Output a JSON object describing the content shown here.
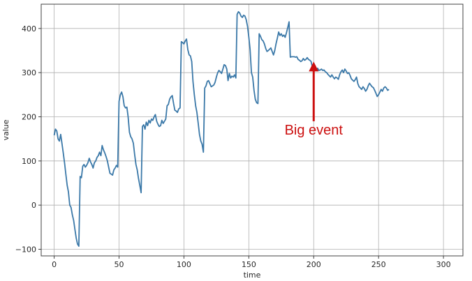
{
  "chart_data": {
    "type": "line",
    "title": "",
    "xlabel": "time",
    "ylabel": "value",
    "xlim": [
      -10,
      315
    ],
    "ylim": [
      -115,
      455
    ],
    "grid": true,
    "x_ticks": [
      0,
      50,
      100,
      150,
      200,
      250,
      300
    ],
    "y_ticks": [
      -100,
      0,
      100,
      200,
      300,
      400
    ],
    "x_tick_labels": [
      "0",
      "50",
      "100",
      "150",
      "200",
      "250",
      "300"
    ],
    "y_tick_labels": [
      "−100",
      "0",
      "100",
      "200",
      "300",
      "400"
    ],
    "series": [
      {
        "color": "#3a78a8",
        "points": [
          [
            0,
            158
          ],
          [
            1,
            172
          ],
          [
            2,
            168
          ],
          [
            3,
            150
          ],
          [
            4,
            145
          ],
          [
            5,
            160
          ],
          [
            6,
            140
          ],
          [
            7,
            118
          ],
          [
            8,
            95
          ],
          [
            9,
            70
          ],
          [
            10,
            45
          ],
          [
            11,
            30
          ],
          [
            12,
            0
          ],
          [
            13,
            -5
          ],
          [
            14,
            -22
          ],
          [
            15,
            -35
          ],
          [
            16,
            -55
          ],
          [
            17,
            -75
          ],
          [
            18,
            -88
          ],
          [
            19,
            -93
          ],
          [
            20,
            65
          ],
          [
            21,
            62
          ],
          [
            22,
            88
          ],
          [
            23,
            92
          ],
          [
            24,
            86
          ],
          [
            25,
            90
          ],
          [
            26,
            96
          ],
          [
            27,
            106
          ],
          [
            28,
            98
          ],
          [
            29,
            92
          ],
          [
            30,
            84
          ],
          [
            31,
            96
          ],
          [
            32,
            100
          ],
          [
            33,
            108
          ],
          [
            34,
            112
          ],
          [
            35,
            120
          ],
          [
            36,
            112
          ],
          [
            37,
            135
          ],
          [
            38,
            125
          ],
          [
            39,
            118
          ],
          [
            40,
            110
          ],
          [
            41,
            100
          ],
          [
            42,
            86
          ],
          [
            43,
            72
          ],
          [
            44,
            70
          ],
          [
            45,
            68
          ],
          [
            46,
            80
          ],
          [
            47,
            84
          ],
          [
            48,
            90
          ],
          [
            49,
            86
          ],
          [
            50,
            235
          ],
          [
            51,
            250
          ],
          [
            52,
            256
          ],
          [
            53,
            245
          ],
          [
            54,
            225
          ],
          [
            55,
            220
          ],
          [
            56,
            222
          ],
          [
            57,
            200
          ],
          [
            58,
            165
          ],
          [
            59,
            155
          ],
          [
            60,
            150
          ],
          [
            61,
            140
          ],
          [
            62,
            115
          ],
          [
            63,
            92
          ],
          [
            64,
            80
          ],
          [
            65,
            60
          ],
          [
            66,
            45
          ],
          [
            67,
            28
          ],
          [
            68,
            178
          ],
          [
            69,
            182
          ],
          [
            70,
            172
          ],
          [
            71,
            188
          ],
          [
            72,
            180
          ],
          [
            73,
            192
          ],
          [
            74,
            186
          ],
          [
            75,
            195
          ],
          [
            76,
            192
          ],
          [
            77,
            200
          ],
          [
            78,
            205
          ],
          [
            79,
            190
          ],
          [
            80,
            183
          ],
          [
            81,
            178
          ],
          [
            82,
            180
          ],
          [
            83,
            192
          ],
          [
            84,
            185
          ],
          [
            85,
            190
          ],
          [
            86,
            195
          ],
          [
            87,
            225
          ],
          [
            88,
            228
          ],
          [
            89,
            240
          ],
          [
            90,
            245
          ],
          [
            91,
            248
          ],
          [
            92,
            230
          ],
          [
            93,
            215
          ],
          [
            94,
            213
          ],
          [
            95,
            210
          ],
          [
            96,
            218
          ],
          [
            97,
            220
          ],
          [
            98,
            370
          ],
          [
            99,
            368
          ],
          [
            100,
            365
          ],
          [
            101,
            372
          ],
          [
            102,
            376
          ],
          [
            103,
            352
          ],
          [
            104,
            340
          ],
          [
            105,
            338
          ],
          [
            106,
            325
          ],
          [
            107,
            280
          ],
          [
            108,
            250
          ],
          [
            109,
            225
          ],
          [
            110,
            210
          ],
          [
            111,
            185
          ],
          [
            112,
            160
          ],
          [
            113,
            145
          ],
          [
            114,
            138
          ],
          [
            115,
            120
          ],
          [
            116,
            265
          ],
          [
            117,
            270
          ],
          [
            118,
            280
          ],
          [
            119,
            282
          ],
          [
            120,
            275
          ],
          [
            121,
            268
          ],
          [
            122,
            270
          ],
          [
            123,
            272
          ],
          [
            124,
            278
          ],
          [
            125,
            290
          ],
          [
            126,
            300
          ],
          [
            127,
            305
          ],
          [
            128,
            302
          ],
          [
            129,
            298
          ],
          [
            130,
            308
          ],
          [
            131,
            318
          ],
          [
            132,
            316
          ],
          [
            133,
            308
          ],
          [
            134,
            282
          ],
          [
            135,
            298
          ],
          [
            136,
            288
          ],
          [
            137,
            292
          ],
          [
            138,
            290
          ],
          [
            139,
            295
          ],
          [
            140,
            288
          ],
          [
            141,
            432
          ],
          [
            142,
            438
          ],
          [
            143,
            435
          ],
          [
            144,
            428
          ],
          [
            145,
            425
          ],
          [
            146,
            430
          ],
          [
            147,
            428
          ],
          [
            148,
            420
          ],
          [
            149,
            405
          ],
          [
            150,
            380
          ],
          [
            151,
            352
          ],
          [
            152,
            300
          ],
          [
            153,
            290
          ],
          [
            154,
            260
          ],
          [
            155,
            240
          ],
          [
            156,
            232
          ],
          [
            157,
            230
          ],
          [
            158,
            388
          ],
          [
            159,
            382
          ],
          [
            160,
            375
          ],
          [
            161,
            372
          ],
          [
            162,
            365
          ],
          [
            163,
            355
          ],
          [
            164,
            348
          ],
          [
            165,
            350
          ],
          [
            166,
            353
          ],
          [
            167,
            356
          ],
          [
            168,
            348
          ],
          [
            169,
            340
          ],
          [
            170,
            350
          ],
          [
            171,
            366
          ],
          [
            172,
            378
          ],
          [
            173,
            392
          ],
          [
            174,
            384
          ],
          [
            175,
            388
          ],
          [
            176,
            382
          ],
          [
            177,
            385
          ],
          [
            178,
            380
          ],
          [
            179,
            390
          ],
          [
            180,
            402
          ],
          [
            181,
            415
          ],
          [
            182,
            335
          ],
          [
            183,
            336
          ],
          [
            184,
            336
          ],
          [
            185,
            336
          ],
          [
            186,
            335
          ],
          [
            187,
            336
          ],
          [
            188,
            330
          ],
          [
            189,
            328
          ],
          [
            190,
            325
          ],
          [
            191,
            327
          ],
          [
            192,
            332
          ],
          [
            193,
            328
          ],
          [
            194,
            330
          ],
          [
            195,
            334
          ],
          [
            196,
            330
          ],
          [
            197,
            328
          ],
          [
            198,
            325
          ],
          [
            199,
            312
          ],
          [
            200,
            310
          ],
          [
            201,
            308
          ],
          [
            202,
            306
          ],
          [
            203,
            310
          ],
          [
            204,
            305
          ],
          [
            205,
            306
          ],
          [
            206,
            308
          ],
          [
            207,
            305
          ],
          [
            208,
            306
          ],
          [
            209,
            302
          ],
          [
            210,
            300
          ],
          [
            211,
            296
          ],
          [
            212,
            293
          ],
          [
            213,
            290
          ],
          [
            214,
            295
          ],
          [
            215,
            290
          ],
          [
            216,
            286
          ],
          [
            217,
            290
          ],
          [
            218,
            288
          ],
          [
            219,
            285
          ],
          [
            220,
            295
          ],
          [
            221,
            302
          ],
          [
            222,
            306
          ],
          [
            223,
            300
          ],
          [
            224,
            308
          ],
          [
            225,
            304
          ],
          [
            226,
            298
          ],
          [
            227,
            300
          ],
          [
            228,
            294
          ],
          [
            229,
            286
          ],
          [
            230,
            283
          ],
          [
            231,
            280
          ],
          [
            232,
            284
          ],
          [
            233,
            290
          ],
          [
            234,
            275
          ],
          [
            235,
            268
          ],
          [
            236,
            265
          ],
          [
            237,
            262
          ],
          [
            238,
            268
          ],
          [
            239,
            264
          ],
          [
            240,
            258
          ],
          [
            241,
            262
          ],
          [
            242,
            270
          ],
          [
            243,
            276
          ],
          [
            244,
            272
          ],
          [
            245,
            268
          ],
          [
            246,
            266
          ],
          [
            247,
            260
          ],
          [
            248,
            253
          ],
          [
            249,
            246
          ],
          [
            250,
            250
          ],
          [
            251,
            256
          ],
          [
            252,
            262
          ],
          [
            253,
            258
          ],
          [
            254,
            265
          ],
          [
            255,
            268
          ],
          [
            256,
            265
          ],
          [
            257,
            260
          ],
          [
            258,
            262
          ]
        ]
      }
    ],
    "annotations": [
      {
        "text": "Big event",
        "color": "#cc1010",
        "arrow_x": 200,
        "arrow_from_y": 190,
        "arrow_to_y": 325
      }
    ]
  }
}
